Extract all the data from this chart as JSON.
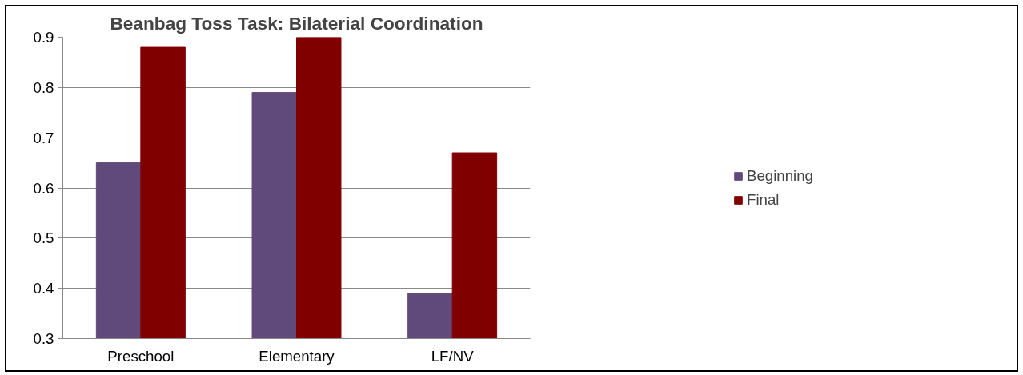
{
  "chart_data": {
    "type": "bar",
    "title": "Beanbag Toss Task: Bilaterial Coordination",
    "categories": [
      "Preschool",
      "Elementary",
      "LF/NV"
    ],
    "series": [
      {
        "name": "Beginning",
        "color": "#604a7b",
        "values": [
          0.65,
          0.79,
          0.39
        ]
      },
      {
        "name": "Final",
        "color": "#800000",
        "values": [
          0.88,
          0.9,
          0.67
        ]
      }
    ],
    "ylim": [
      0.3,
      0.9
    ],
    "yticks": [
      0.3,
      0.4,
      0.5,
      0.6,
      0.7,
      0.8,
      0.9
    ],
    "grid": "y",
    "legend": "right"
  }
}
